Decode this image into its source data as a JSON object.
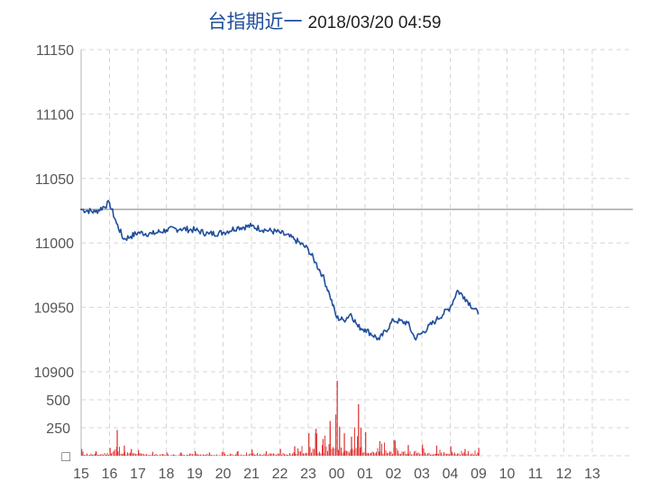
{
  "title": {
    "name": "台指期近一",
    "timestamp": "2018/03/20 04:59"
  },
  "chart_data": [
    {
      "type": "line",
      "ylim": [
        10900,
        11150
      ],
      "yticks": [
        10900,
        10950,
        11000,
        11050,
        11100,
        11150
      ],
      "reference_line": 11026,
      "grid": true,
      "colors": {
        "line": "#1f4e9c",
        "reference": "#9e9e9e",
        "grid": "#d6d6d6"
      },
      "x_hours": [
        "15",
        "16",
        "17",
        "18",
        "19",
        "20",
        "21",
        "22",
        "23",
        "00",
        "01",
        "02",
        "03",
        "04",
        "09",
        "10",
        "11",
        "12",
        "13"
      ],
      "x": [
        "15:00",
        "15:30",
        "16:00",
        "16:15",
        "16:30",
        "16:45",
        "17:00",
        "17:30",
        "18:00",
        "18:30",
        "19:00",
        "19:30",
        "20:00",
        "20:30",
        "21:00",
        "21:30",
        "22:00",
        "22:30",
        "23:00",
        "23:15",
        "23:30",
        "23:45",
        "00:00",
        "00:15",
        "00:30",
        "00:45",
        "01:00",
        "01:30",
        "02:00",
        "02:30",
        "02:45",
        "03:00",
        "03:30",
        "04:00",
        "04:15",
        "04:30",
        "04:59"
      ],
      "values": [
        11026,
        11024,
        11031,
        11015,
        11003,
        11005,
        11008,
        11007,
        11010,
        11011,
        11010,
        11007,
        11008,
        11012,
        11013,
        11010,
        11008,
        11003,
        10995,
        10985,
        10975,
        10960,
        10942,
        10940,
        10945,
        10935,
        10933,
        10925,
        10940,
        10938,
        10926,
        10930,
        10940,
        10950,
        10963,
        10958,
        10945
      ]
    },
    {
      "type": "bar",
      "ylim": [
        0,
        750
      ],
      "yticks": [
        0,
        250,
        500
      ],
      "ytick_labels": [
        "□",
        "250",
        "500"
      ],
      "colors": {
        "bar": "#e03c3c"
      },
      "x": [
        "15:00",
        "15:30",
        "16:00",
        "16:15",
        "16:30",
        "16:45",
        "17:00",
        "17:30",
        "18:00",
        "18:30",
        "19:00",
        "19:30",
        "20:00",
        "20:30",
        "21:00",
        "21:30",
        "22:00",
        "22:30",
        "23:00",
        "23:15",
        "23:30",
        "23:45",
        "00:00",
        "00:05",
        "00:15",
        "00:30",
        "00:45",
        "00:50",
        "01:00",
        "01:30",
        "02:00",
        "02:30",
        "03:00",
        "03:30",
        "04:00",
        "04:30",
        "04:59"
      ],
      "values": [
        60,
        40,
        70,
        230,
        90,
        60,
        50,
        35,
        30,
        30,
        40,
        30,
        35,
        40,
        55,
        40,
        60,
        85,
        200,
        240,
        150,
        310,
        670,
        260,
        200,
        170,
        460,
        250,
        210,
        130,
        140,
        95,
        100,
        90,
        85,
        60,
        70
      ]
    }
  ]
}
